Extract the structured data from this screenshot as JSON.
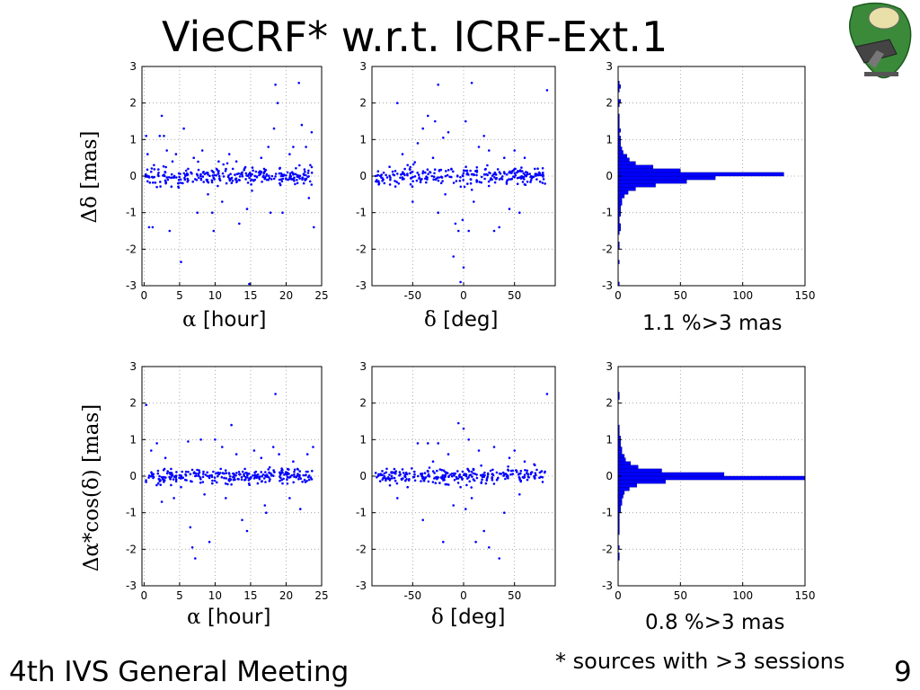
{
  "slide": {
    "title": "VieCRF* w.r.t. ICRF-Ext.1",
    "footer_left": "4th IVS General Meeting",
    "footer_note": "* sources with >3 sessions",
    "page_number": "9"
  },
  "labels": {
    "row1_ylabel": "Δδ [mas]",
    "row2_ylabel": "Δα*cos(δ) [mas]",
    "alpha_symbol": "α",
    "alpha_unit": " [hour]",
    "delta_symbol": "δ",
    "delta_unit": " [deg]",
    "hist1_note": "1.1 %>3 mas",
    "hist2_note": "0.8 %>3 mas"
  },
  "colors": {
    "marker": "#0000ff",
    "axis": "#000000",
    "grid": "#999999"
  },
  "chart_data": [
    {
      "type": "scatter",
      "xlabel": "α [hour]",
      "ylabel": "Δδ [mas]",
      "xlim": [
        -0.3,
        25
      ],
      "ylim": [
        -3,
        3
      ],
      "xticks": [
        0,
        5,
        10,
        15,
        20,
        25
      ],
      "yticks": [
        -3,
        -2,
        -1,
        0,
        1,
        2,
        3
      ],
      "grid": true,
      "points": [
        [
          0.3,
          1.1
        ],
        [
          0.5,
          0.6
        ],
        [
          0.7,
          -1.4
        ],
        [
          1.2,
          -1.4
        ],
        [
          1.4,
          0.3
        ],
        [
          2.2,
          1.1
        ],
        [
          2.5,
          1.65
        ],
        [
          2.8,
          1.1
        ],
        [
          3.2,
          0.7
        ],
        [
          3.6,
          -1.5
        ],
        [
          4,
          0.4
        ],
        [
          4.5,
          0.6
        ],
        [
          5.2,
          -2.35
        ],
        [
          5.6,
          1.3
        ],
        [
          6.2,
          0.2
        ],
        [
          7,
          0.5
        ],
        [
          7.5,
          -1
        ],
        [
          8.2,
          0.7
        ],
        [
          9,
          -0.5
        ],
        [
          9.6,
          -1
        ],
        [
          9.8,
          -1.5
        ],
        [
          10.5,
          0.4
        ],
        [
          11,
          -0.7
        ],
        [
          12,
          0.6
        ],
        [
          12.5,
          0.2
        ],
        [
          13,
          0.4
        ],
        [
          13.4,
          -1.3
        ],
        [
          14.5,
          -0.9
        ],
        [
          14.8,
          -2.95
        ],
        [
          15.2,
          -0.4
        ],
        [
          16.5,
          0.5
        ],
        [
          17.5,
          0.8
        ],
        [
          17.8,
          -1
        ],
        [
          18.3,
          1.3
        ],
        [
          18.5,
          2.5
        ],
        [
          18.8,
          2
        ],
        [
          19.5,
          -1
        ],
        [
          20.5,
          0.6
        ],
        [
          21,
          0.8
        ],
        [
          21.8,
          2.55
        ],
        [
          22.2,
          1.4
        ],
        [
          22.8,
          0.8
        ],
        [
          23.2,
          -0.6
        ],
        [
          23.6,
          1.2
        ],
        [
          23.9,
          -1.4
        ],
        [
          1.8,
          -0.3
        ],
        [
          3,
          0.1
        ],
        [
          4.8,
          -0.2
        ],
        [
          6.6,
          0.1
        ],
        [
          8.8,
          -0.1
        ],
        [
          10.2,
          0.2
        ],
        [
          11.6,
          -0.2
        ],
        [
          13.8,
          0.1
        ],
        [
          15.6,
          -0.1
        ],
        [
          16.9,
          0.2
        ],
        [
          19.1,
          -0.2
        ],
        [
          20.2,
          0.1
        ],
        [
          22.5,
          -0.2
        ],
        [
          23.4,
          0.3
        ]
      ],
      "core_spread": 0.12
    },
    {
      "type": "scatter",
      "xlabel": "δ [deg]",
      "ylabel": "Δδ [mas]",
      "xlim": [
        -90,
        90
      ],
      "ylim": [
        -3,
        3
      ],
      "xticks": [
        -50,
        0,
        50
      ],
      "yticks": [
        -3,
        -2,
        -1,
        0,
        1,
        2,
        3
      ],
      "grid": true,
      "points": [
        [
          -72,
          -0.1
        ],
        [
          -65,
          2
        ],
        [
          -60,
          0.6
        ],
        [
          -55,
          0.3
        ],
        [
          -50,
          -0.7
        ],
        [
          -45,
          0.9
        ],
        [
          -40,
          1.3
        ],
        [
          -35,
          1.65
        ],
        [
          -30,
          0.5
        ],
        [
          -28,
          1.5
        ],
        [
          -25,
          -1
        ],
        [
          -20,
          1.05
        ],
        [
          -18,
          -0.5
        ],
        [
          -15,
          1.2
        ],
        [
          -12,
          0.2
        ],
        [
          -8,
          -1.3
        ],
        [
          -5,
          -1.5
        ],
        [
          -3,
          -2.9
        ],
        [
          -1,
          -1.2
        ],
        [
          2,
          1.5
        ],
        [
          5,
          -1.5
        ],
        [
          8,
          2.55
        ],
        [
          10,
          -0.7
        ],
        [
          15,
          0.8
        ],
        [
          20,
          1.1
        ],
        [
          25,
          0.7
        ],
        [
          30,
          -1.5
        ],
        [
          35,
          -1.4
        ],
        [
          40,
          0.5
        ],
        [
          45,
          -0.9
        ],
        [
          50,
          0.7
        ],
        [
          55,
          -1
        ],
        [
          60,
          0.5
        ],
        [
          70,
          0.2
        ],
        [
          82,
          2.35
        ],
        [
          -25,
          2.5
        ],
        [
          -10,
          -2.2
        ],
        [
          0,
          -2.5
        ]
      ],
      "core_spread": 0.12
    },
    {
      "type": "bar",
      "orientation": "horizontal",
      "xlabel": "",
      "ylabel": "Δδ [mas]",
      "xlim": [
        0,
        150
      ],
      "ylim": [
        -3,
        3
      ],
      "xticks": [
        0,
        50,
        100,
        150
      ],
      "yticks": [
        -3,
        -2,
        -1,
        0,
        1,
        2,
        3
      ],
      "grid": true,
      "bins": [
        -2.95,
        -2.85,
        -2.75,
        -2.65,
        -2.55,
        -2.45,
        -2.35,
        -2.25,
        -2.15,
        -2.05,
        -1.95,
        -1.85,
        -1.75,
        -1.65,
        -1.55,
        -1.45,
        -1.35,
        -1.25,
        -1.15,
        -1.05,
        -0.95,
        -0.85,
        -0.75,
        -0.65,
        -0.55,
        -0.45,
        -0.35,
        -0.25,
        -0.15,
        -0.05,
        0.05,
        0.15,
        0.25,
        0.35,
        0.45,
        0.55,
        0.65,
        0.75,
        0.85,
        0.95,
        1.05,
        1.15,
        1.25,
        1.35,
        1.45,
        1.55,
        1.65,
        1.75,
        1.85,
        1.95,
        2.05,
        2.15,
        2.25,
        2.35,
        2.45,
        2.55,
        2.65,
        2.75,
        2.85,
        2.95
      ],
      "counts": [
        1,
        0,
        0,
        0,
        0,
        0,
        1,
        0,
        0,
        0,
        1,
        1,
        0,
        0,
        1,
        2,
        2,
        1,
        1,
        2,
        2,
        2,
        3,
        3,
        5,
        8,
        14,
        30,
        55,
        78,
        133,
        50,
        28,
        14,
        9,
        7,
        4,
        3,
        2,
        2,
        2,
        1,
        2,
        1,
        1,
        1,
        1,
        0,
        0,
        1,
        2,
        0,
        0,
        1,
        2,
        1,
        0,
        0,
        0,
        0
      ],
      "annotation": "1.1 %>3 mas"
    },
    {
      "type": "scatter",
      "xlabel": "α [hour]",
      "ylabel": "Δα*cos(δ) [mas]",
      "xlim": [
        -0.3,
        25
      ],
      "ylim": [
        -3,
        3
      ],
      "xticks": [
        0,
        5,
        10,
        15,
        20,
        25
      ],
      "yticks": [
        -3,
        -2,
        -1,
        0,
        1,
        2,
        3
      ],
      "grid": true,
      "points": [
        [
          0.3,
          1.95
        ],
        [
          1,
          0.7
        ],
        [
          1.8,
          0.9
        ],
        [
          2.5,
          -0.7
        ],
        [
          3,
          0.5
        ],
        [
          4.2,
          -0.6
        ],
        [
          5.2,
          -0.3
        ],
        [
          6.2,
          0.95
        ],
        [
          6.5,
          -1.4
        ],
        [
          6.8,
          -1.95
        ],
        [
          7.2,
          -2.25
        ],
        [
          8,
          1
        ],
        [
          8.5,
          -0.5
        ],
        [
          9.2,
          -1.8
        ],
        [
          10,
          1
        ],
        [
          11,
          0.8
        ],
        [
          11.5,
          -0.6
        ],
        [
          12.3,
          1.4
        ],
        [
          13,
          0.6
        ],
        [
          13.8,
          -1.2
        ],
        [
          14.5,
          -1.5
        ],
        [
          15.5,
          0.7
        ],
        [
          16.5,
          0.5
        ],
        [
          17,
          -0.8
        ],
        [
          17.2,
          -1
        ],
        [
          18.2,
          0.8
        ],
        [
          18.5,
          2.25
        ],
        [
          19,
          0.6
        ],
        [
          20.5,
          -0.6
        ],
        [
          21,
          0.4
        ],
        [
          22,
          -0.9
        ],
        [
          23,
          0.6
        ],
        [
          23.8,
          0.8
        ],
        [
          2,
          -0.2
        ],
        [
          3.8,
          0.2
        ],
        [
          5.8,
          -0.1
        ],
        [
          7.8,
          0.1
        ],
        [
          9.6,
          -0.2
        ],
        [
          10.8,
          0.2
        ],
        [
          12.6,
          -0.1
        ],
        [
          14.2,
          0.2
        ],
        [
          16,
          -0.2
        ],
        [
          17.6,
          0.1
        ],
        [
          19.4,
          -0.1
        ],
        [
          21.6,
          0.2
        ],
        [
          22.6,
          -0.1
        ]
      ],
      "core_spread": 0.1
    },
    {
      "type": "scatter",
      "xlabel": "δ [deg]",
      "ylabel": "Δα*cos(δ) [mas]",
      "xlim": [
        -90,
        90
      ],
      "ylim": [
        -3,
        3
      ],
      "xticks": [
        -50,
        0,
        50
      ],
      "yticks": [
        -3,
        -2,
        -1,
        0,
        1,
        2,
        3
      ],
      "grid": true,
      "points": [
        [
          -70,
          0.1
        ],
        [
          -65,
          -0.6
        ],
        [
          -55,
          -0.3
        ],
        [
          -45,
          0.9
        ],
        [
          -40,
          -1.2
        ],
        [
          -35,
          0.9
        ],
        [
          -30,
          0.4
        ],
        [
          -25,
          0.9
        ],
        [
          -20,
          -1.8
        ],
        [
          -15,
          0.6
        ],
        [
          -10,
          -0.8
        ],
        [
          -5,
          1.45
        ],
        [
          0,
          1.3
        ],
        [
          2,
          -0.9
        ],
        [
          5,
          1
        ],
        [
          8,
          -0.6
        ],
        [
          12,
          -1.8
        ],
        [
          15,
          0.7
        ],
        [
          20,
          -1.5
        ],
        [
          25,
          -1.95
        ],
        [
          30,
          0.8
        ],
        [
          35,
          -2.25
        ],
        [
          40,
          -1
        ],
        [
          45,
          0.5
        ],
        [
          50,
          0.7
        ],
        [
          55,
          -0.5
        ],
        [
          60,
          0.4
        ],
        [
          70,
          0.3
        ],
        [
          82,
          2.25
        ],
        [
          -3,
          -0.3
        ],
        [
          4,
          0.2
        ],
        [
          22,
          -0.2
        ]
      ],
      "core_spread": 0.1
    },
    {
      "type": "bar",
      "orientation": "horizontal",
      "xlabel": "",
      "ylabel": "Δα*cos(δ) [mas]",
      "xlim": [
        0,
        150
      ],
      "ylim": [
        -3,
        3
      ],
      "xticks": [
        0,
        50,
        100,
        150
      ],
      "yticks": [
        -3,
        -2,
        -1,
        0,
        1,
        2,
        3
      ],
      "grid": true,
      "bins": [
        -2.95,
        -2.85,
        -2.75,
        -2.65,
        -2.55,
        -2.45,
        -2.35,
        -2.25,
        -2.15,
        -2.05,
        -1.95,
        -1.85,
        -1.75,
        -1.65,
        -1.55,
        -1.45,
        -1.35,
        -1.25,
        -1.15,
        -1.05,
        -0.95,
        -0.85,
        -0.75,
        -0.65,
        -0.55,
        -0.45,
        -0.35,
        -0.25,
        -0.15,
        -0.05,
        0.05,
        0.15,
        0.25,
        0.35,
        0.45,
        0.55,
        0.65,
        0.75,
        0.85,
        0.95,
        1.05,
        1.15,
        1.25,
        1.35,
        1.45,
        1.55,
        1.65,
        1.75,
        1.85,
        1.95,
        2.05,
        2.15,
        2.25,
        2.35,
        2.45,
        2.55,
        2.65,
        2.75,
        2.85,
        2.95
      ],
      "counts": [
        0,
        0,
        0,
        0,
        0,
        0,
        0,
        1,
        1,
        0,
        1,
        0,
        0,
        0,
        1,
        1,
        1,
        1,
        1,
        1,
        2,
        2,
        3,
        3,
        4,
        5,
        9,
        15,
        38,
        155,
        85,
        35,
        16,
        10,
        6,
        5,
        3,
        3,
        2,
        2,
        2,
        1,
        1,
        1,
        0,
        0,
        0,
        0,
        0,
        0,
        0,
        1,
        1,
        0,
        0,
        0,
        0,
        0,
        0,
        0
      ],
      "annotation": "0.8 %>3 mas"
    }
  ]
}
